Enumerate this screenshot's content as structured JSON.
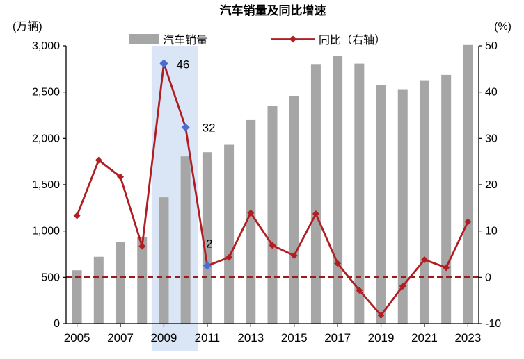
{
  "chart_data": {
    "type": "bar",
    "title": "汽车销量及同比增速",
    "left_axis": {
      "unit": "(万辆)",
      "min": 0,
      "max": 3000,
      "ticks": [
        "0",
        "500",
        "1,000",
        "1,500",
        "2,000",
        "2,500",
        "3,000"
      ],
      "tick_values": [
        0,
        500,
        1000,
        1500,
        2000,
        2500,
        3000
      ]
    },
    "right_axis": {
      "unit": "(%)",
      "min": -10,
      "max": 50,
      "ticks": [
        "-10",
        "0",
        "10",
        "20",
        "30",
        "40",
        "50"
      ],
      "tick_values": [
        -10,
        0,
        10,
        20,
        30,
        40,
        50
      ]
    },
    "categories": [
      2005,
      2006,
      2007,
      2008,
      2009,
      2010,
      2011,
      2012,
      2013,
      2014,
      2015,
      2016,
      2017,
      2018,
      2019,
      2020,
      2021,
      2022,
      2023
    ],
    "x_tick_labels": [
      "2005",
      "2007",
      "2009",
      "2011",
      "2013",
      "2015",
      "2017",
      "2019",
      "2021",
      "2023"
    ],
    "series": [
      {
        "name": "汽车销量",
        "type": "bar",
        "axis": "left",
        "color": "#a6a6a6",
        "values": [
          576,
          722,
          879,
          938,
          1364,
          1806,
          1851,
          1931,
          2198,
          2349,
          2460,
          2803,
          2888,
          2808,
          2577,
          2531,
          2628,
          2686,
          3009
        ]
      },
      {
        "name": "同比（右轴）",
        "type": "line",
        "axis": "right",
        "color": "#b01e24",
        "values": [
          13.3,
          25.3,
          21.7,
          6.7,
          46.2,
          32.4,
          2.5,
          4.3,
          13.9,
          6.9,
          4.7,
          13.7,
          3.0,
          -2.8,
          -8.2,
          -1.9,
          3.8,
          2.1,
          12.0
        ]
      }
    ],
    "annotations": [
      {
        "year": 2009,
        "label": "46"
      },
      {
        "year": 2010,
        "label": "32"
      },
      {
        "year": 2011,
        "label": "2"
      }
    ],
    "highlight_band": {
      "from": 2009,
      "to": 2010
    },
    "reference_line": {
      "axis": "right",
      "value": 0,
      "style": "dashed"
    },
    "colors": {
      "bar": "#a6a6a6",
      "line": "#b01e24",
      "band": "#d3e2f4",
      "highlight_marker": "#4a6cd3",
      "annotation_text": "#84a3da",
      "reference_line": "#9c1a1f",
      "axis": "#000000"
    },
    "legend_position": "top",
    "grid": false
  }
}
